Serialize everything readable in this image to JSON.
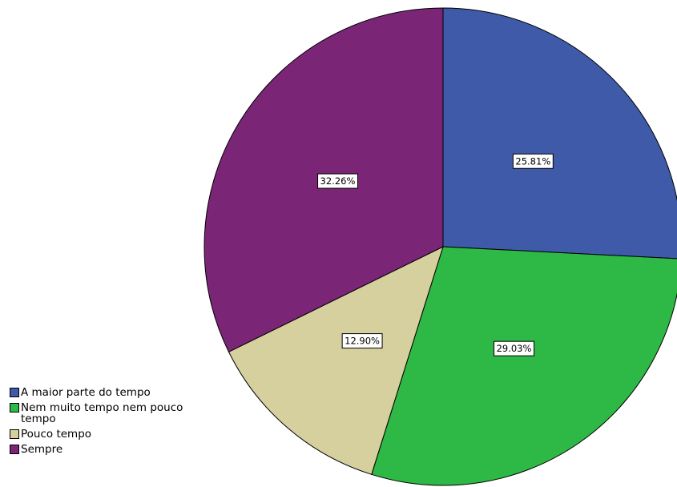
{
  "chart_data": {
    "type": "pie",
    "slices": [
      {
        "label": "A maior parte do tempo",
        "value": 25.81,
        "value_label": "25.81%",
        "color": "#3f5aa8"
      },
      {
        "label": "Nem muito tempo nem pouco tempo",
        "value": 29.03,
        "value_label": "29.03%",
        "color": "#2eb845"
      },
      {
        "label": "Pouco tempo",
        "value": 12.9,
        "value_label": "12.90%",
        "color": "#d6cf9e"
      },
      {
        "label": "Sempre",
        "value": 32.26,
        "value_label": "32.26%",
        "color": "#7b2577"
      }
    ],
    "legend_position": "bottom-left",
    "start_angle": "12 o'clock",
    "direction": "clockwise"
  },
  "legend": {
    "items": [
      {
        "label": "A maior parte do tempo",
        "color": "#3f5aa8"
      },
      {
        "label": "Nem muito tempo nem pouco tempo",
        "color": "#2eb845"
      },
      {
        "label": "Pouco tempo",
        "color": "#d6cf9e"
      },
      {
        "label": "Sempre",
        "color": "#7b2577"
      }
    ]
  }
}
